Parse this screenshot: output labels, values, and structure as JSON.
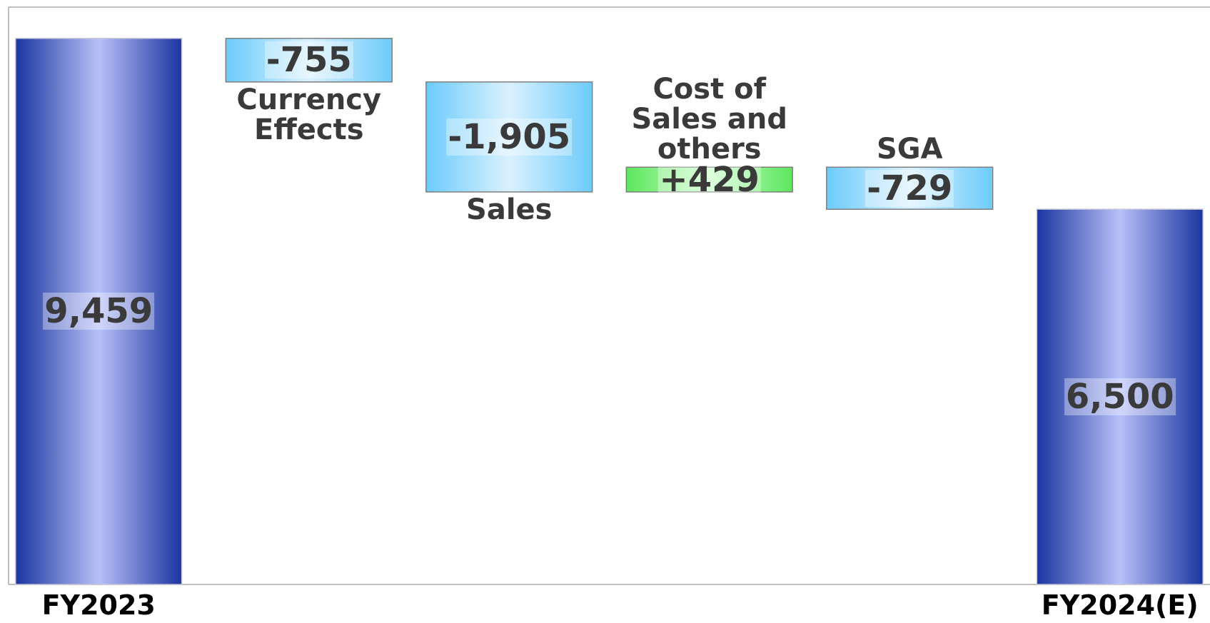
{
  "chart_data": {
    "type": "waterfall",
    "categories": [
      "FY2023",
      "Currency Effects",
      "Sales",
      "Cost of Sales and others",
      "SGA",
      "FY2024(E)"
    ],
    "values": [
      9459,
      -755,
      -1905,
      429,
      -729,
      6500
    ],
    "value_labels": [
      "9,459",
      "-755",
      "-1,905",
      "+429",
      "-729",
      "6,500"
    ],
    "ylim": [
      0,
      10000
    ],
    "colors": {
      "total": "#1a35a0",
      "decrease": "#6ccbfa",
      "increase": "#5ce65c"
    }
  }
}
